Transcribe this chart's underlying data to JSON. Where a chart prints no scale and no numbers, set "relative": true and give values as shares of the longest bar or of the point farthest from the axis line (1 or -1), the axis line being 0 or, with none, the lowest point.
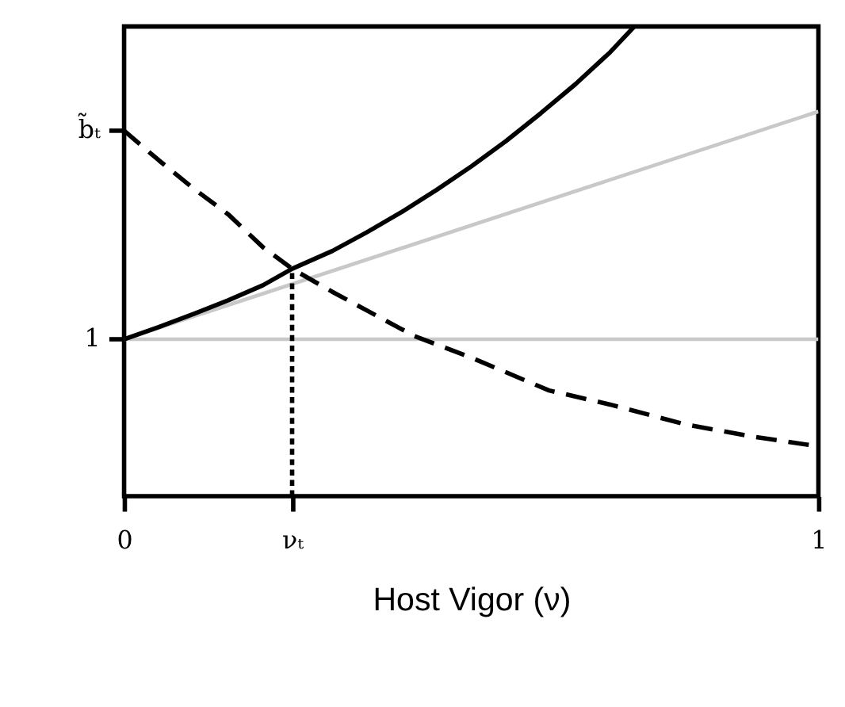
{
  "chart_data": {
    "type": "line",
    "relative": true,
    "xlabel": "Host Vigor (ν)",
    "xlim": [
      0,
      1
    ],
    "xticks": [
      0,
      {
        "value": 0.242,
        "label": "νₜ"
      },
      1
    ],
    "grid": false,
    "legend": false,
    "marker": "none",
    "series": [
      {
        "color": "#c8c8c8",
        "line_style": "solid",
        "x": [
          0,
          1
        ],
        "values": [
          0.334,
          0.334
        ]
      },
      {
        "color": "#c8c8c8",
        "line_style": "solid",
        "x": [
          0,
          1
        ],
        "values": [
          0.334,
          0.819
        ]
      },
      {
        "color": "#000000",
        "line_style": "solid",
        "x": [
          0,
          0.05,
          0.1,
          0.15,
          0.2,
          0.242,
          0.3,
          0.35,
          0.4,
          0.45,
          0.5,
          0.55,
          0.6,
          0.65,
          0.7,
          0.735
        ],
        "values": [
          0.334,
          0.36,
          0.388,
          0.417,
          0.449,
          0.484,
          0.522,
          0.562,
          0.605,
          0.652,
          0.702,
          0.756,
          0.815,
          0.877,
          0.945,
          1.0
        ]
      },
      {
        "color": "#000000",
        "line_style": "dashed",
        "x": [
          0,
          0.05,
          0.1,
          0.15,
          0.2,
          0.242,
          0.3,
          0.35,
          0.418,
          0.5,
          0.612,
          0.7,
          0.808,
          0.9,
          1
        ],
        "values": [
          0.778,
          0.715,
          0.655,
          0.6,
          0.53,
          0.484,
          0.435,
          0.395,
          0.341,
          0.295,
          0.225,
          0.195,
          0.153,
          0.128,
          0.106
        ]
      },
      {
        "color": "#000000",
        "line_style": "dotted",
        "x": [
          0.242,
          0.242
        ],
        "values": [
          0,
          0.484
        ]
      }
    ],
    "annotations": [
      {
        "text": "b̃ₜ",
        "x": 0,
        "y": 0.778
      },
      {
        "text": "1",
        "x": 0,
        "y": 0.334
      }
    ]
  }
}
